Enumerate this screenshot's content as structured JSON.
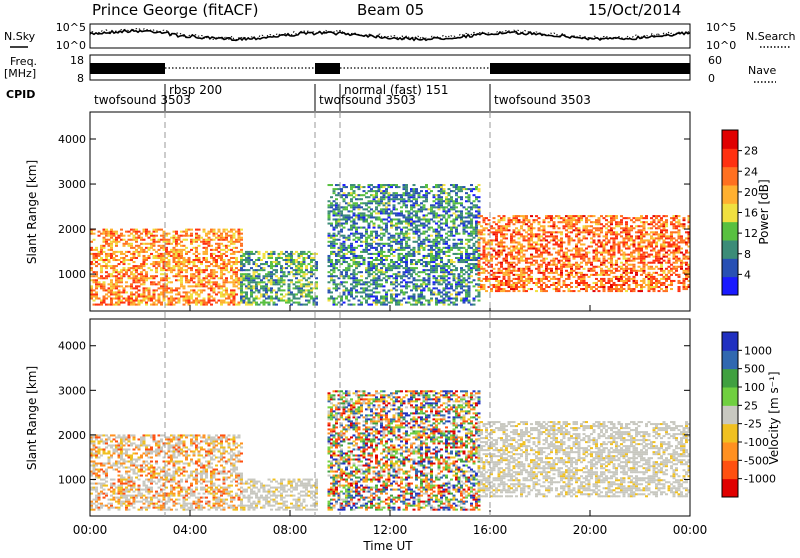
{
  "header": {
    "station": "Prince George (fitACF)",
    "beam": "Beam 05",
    "date": "15/Oct/2014"
  },
  "chart_data": [
    {
      "type": "line",
      "panel": "noise",
      "left_label": "N.Sky",
      "right_label": "N.Search",
      "left_ticks": [
        "10^5",
        "10^0"
      ],
      "right_ticks": [
        "10^5",
        "10^0"
      ]
    },
    {
      "type": "line",
      "panel": "frequency",
      "left_label_top": "Freq.",
      "left_label_bottom": "[MHz]",
      "right_label": "Nave",
      "left_ticks": [
        18,
        8
      ],
      "right_ticks": [
        60,
        0
      ]
    },
    {
      "type": "table",
      "panel": "cpid",
      "label": "CPID",
      "modes": [
        {
          "name": "twofsound 3503",
          "start": 0.0,
          "end": 3.0
        },
        {
          "name": "rbsp 200",
          "start": 3.0,
          "end": 9.0
        },
        {
          "name": "twofsound 3503",
          "start": 9.0,
          "end": 10.0
        },
        {
          "name": "normal (fast) 151",
          "start": 10.0,
          "end": 16.0
        },
        {
          "name": "twofsound 3503",
          "start": 16.0,
          "end": 24.0
        }
      ]
    },
    {
      "type": "heatmap",
      "panel": "power",
      "ylabel": "Slant Range [km]",
      "yticks": [
        1000,
        2000,
        3000,
        4000
      ],
      "ylim": [
        180,
        4600
      ],
      "xlim": [
        0,
        24
      ],
      "colorbar_label": "Power [dB]",
      "colorbar_ticks": [
        4,
        8,
        12,
        16,
        20,
        24,
        28
      ],
      "colorbar_range": [
        0,
        32
      ],
      "colors": [
        "#1a1aff",
        "#2850b4",
        "#3c8c78",
        "#58c040",
        "#f0e040",
        "#ffb030",
        "#ff7020",
        "#ff3010",
        "#e00000"
      ],
      "echo_regions": [
        {
          "t0": 0.0,
          "t1": 6.0,
          "r0": 300,
          "r1": 2000,
          "level": 22
        },
        {
          "t0": 6.0,
          "t1": 9.0,
          "r0": 300,
          "r1": 1500,
          "level": 10
        },
        {
          "t0": 9.5,
          "t1": 15.5,
          "r0": 300,
          "r1": 3000,
          "level": 8
        },
        {
          "t0": 15.5,
          "t1": 24.0,
          "r0": 600,
          "r1": 2300,
          "level": 24
        }
      ]
    },
    {
      "type": "heatmap",
      "panel": "velocity",
      "ylabel": "Slant Range [km]",
      "yticks": [
        1000,
        2000,
        3000,
        4000
      ],
      "ylim": [
        180,
        4600
      ],
      "xlim": [
        0,
        24
      ],
      "xticks": [
        "00:00",
        "04:00",
        "08:00",
        "12:00",
        "16:00",
        "20:00",
        "00:00"
      ],
      "xlabel": "Time UT",
      "colorbar_label": "Velocity [m s⁻¹]",
      "colorbar_ticks": [
        "1000",
        "500",
        "100",
        "25",
        "-25",
        "-100",
        "-500",
        "-1000"
      ],
      "colors": [
        "#2030c0",
        "#3068b0",
        "#40a040",
        "#70d040",
        "#c8c8c0",
        "#f0c020",
        "#ff9020",
        "#ff5010",
        "#e00000"
      ],
      "echo_regions": [
        {
          "t0": 0.0,
          "t1": 6.0,
          "r0": 300,
          "r1": 2000,
          "class": "negative"
        },
        {
          "t0": 6.0,
          "t1": 9.0,
          "r0": 300,
          "r1": 1000,
          "class": "ground"
        },
        {
          "t0": 9.5,
          "t1": 15.5,
          "r0": 300,
          "r1": 3000,
          "class": "mixed"
        },
        {
          "t0": 15.5,
          "t1": 24.0,
          "r0": 600,
          "r1": 2300,
          "class": "ground"
        }
      ]
    }
  ]
}
